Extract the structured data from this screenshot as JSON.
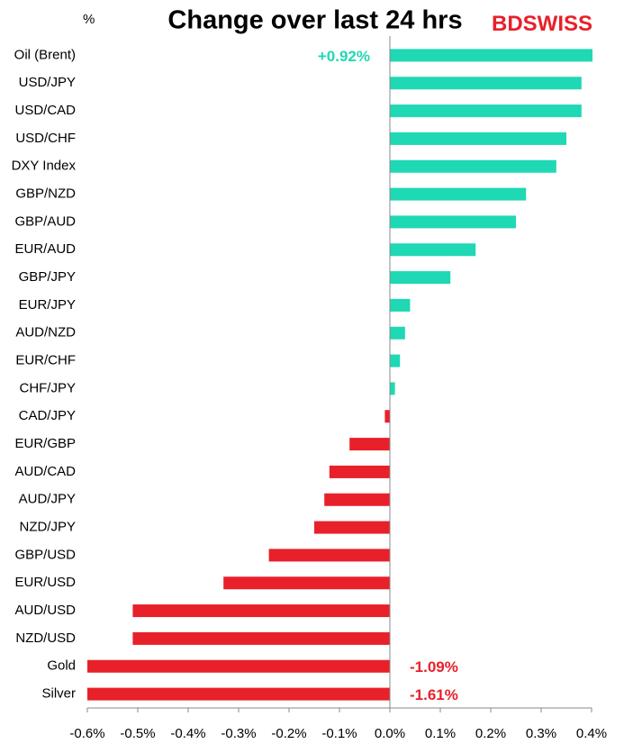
{
  "chart_data": {
    "type": "bar",
    "orientation": "horizontal",
    "title": "Change over last 24 hrs",
    "unit_label": "%",
    "logo": [
      "BD",
      "SWISS"
    ],
    "categories": [
      "Oil (Brent)",
      "USD/JPY",
      "USD/CAD",
      "USD/CHF",
      "DXY Index",
      "GBP/NZD",
      "GBP/AUD",
      "EUR/AUD",
      "GBP/JPY",
      "EUR/JPY",
      "AUD/NZD",
      "EUR/CHF",
      "CHF/JPY",
      "CAD/JPY",
      "EUR/GBP",
      "AUD/CAD",
      "AUD/JPY",
      "NZD/JPY",
      "GBP/USD",
      "EUR/USD",
      "AUD/USD",
      "NZD/USD",
      "Gold",
      "Silver"
    ],
    "values": [
      0.92,
      0.38,
      0.38,
      0.35,
      0.33,
      0.27,
      0.25,
      0.17,
      0.12,
      0.04,
      0.03,
      0.02,
      0.01,
      -0.01,
      -0.08,
      -0.12,
      -0.13,
      -0.15,
      -0.24,
      -0.33,
      -0.51,
      -0.51,
      -1.09,
      -1.61
    ],
    "value_labels": [
      "+0.92%",
      null,
      null,
      null,
      null,
      null,
      null,
      null,
      null,
      null,
      null,
      null,
      null,
      null,
      null,
      null,
      null,
      null,
      null,
      null,
      null,
      null,
      "-1.09%",
      "-1.61%"
    ],
    "positive_color": "#1fd8b4",
    "negative_color": "#e8202a",
    "xlim": [
      -0.6,
      0.4
    ],
    "xticks": [
      {
        "value": -0.6,
        "label": "-0.6%"
      },
      {
        "value": -0.5,
        "label": "-0.5%"
      },
      {
        "value": -0.4,
        "label": "-0.4%"
      },
      {
        "value": -0.3,
        "label": "-0.3%"
      },
      {
        "value": -0.2,
        "label": "-0.2%"
      },
      {
        "value": -0.1,
        "label": "-0.1%"
      },
      {
        "value": 0,
        "label": "0.0%"
      },
      {
        "value": 0.1,
        "label": "0.1%"
      },
      {
        "value": 0.2,
        "label": "0.2%"
      },
      {
        "value": 0.3,
        "label": "0.3%"
      },
      {
        "value": 0.4,
        "label": "0.4%"
      }
    ],
    "grid": false
  }
}
